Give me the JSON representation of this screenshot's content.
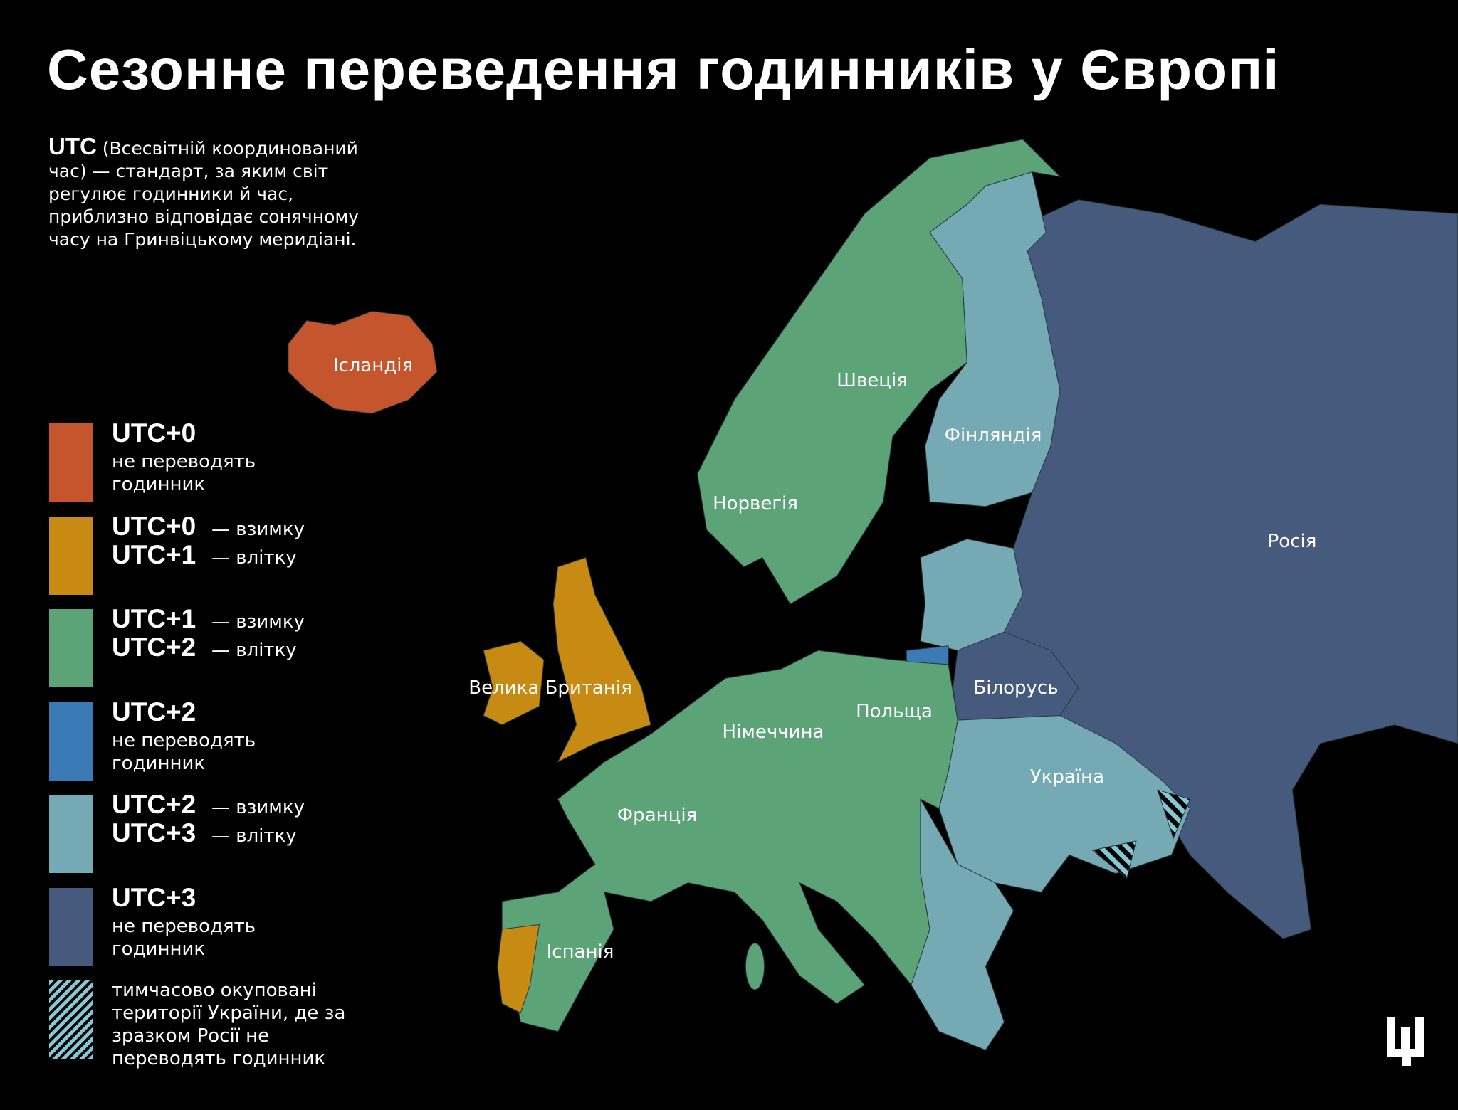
{
  "title": "Сезонне переведення годинників у Європі",
  "intro": {
    "term": "UTC",
    "text": "(Всесвітній координований час) — стандарт, за яким світ регулює годинники й час, приблизно відповідає сонячному часу на Гринвіцькому меридіані."
  },
  "legend": {
    "items": [
      {
        "color": "#c4552d",
        "zones": [
          {
            "code": "UTC+0"
          }
        ],
        "note": "не переводять годинник"
      },
      {
        "color": "#c78b14",
        "zones": [
          {
            "code": "UTC+0",
            "season": "— взимку"
          },
          {
            "code": "UTC+1",
            "season": "— влітку"
          }
        ]
      },
      {
        "color": "#5ca377",
        "zones": [
          {
            "code": "UTC+1",
            "season": "— взимку"
          },
          {
            "code": "UTC+2",
            "season": "— влітку"
          }
        ]
      },
      {
        "color": "#3b7bb5",
        "zones": [
          {
            "code": "UTC+2"
          }
        ],
        "note": "не переводять годинник"
      },
      {
        "color": "#75aab5",
        "zones": [
          {
            "code": "UTC+2",
            "season": "— взимку"
          },
          {
            "code": "UTC+3",
            "season": "— влітку"
          }
        ]
      },
      {
        "color": "#465a7d",
        "zones": [
          {
            "code": "UTC+3"
          }
        ],
        "note": "не переводять годинник"
      },
      {
        "color": "#86c7d4",
        "hatch": true,
        "note": "тимчасово окуповані території України, де за зразком Росії не переводять годинник"
      }
    ]
  },
  "map": {
    "countries": [
      "Ісландія",
      "Швеція",
      "Фінляндія",
      "Норвегія",
      "Росія",
      "Велика Британія",
      "Білорусь",
      "Польща",
      "Німеччина",
      "Україна",
      "Франція",
      "Іспанія"
    ]
  }
}
